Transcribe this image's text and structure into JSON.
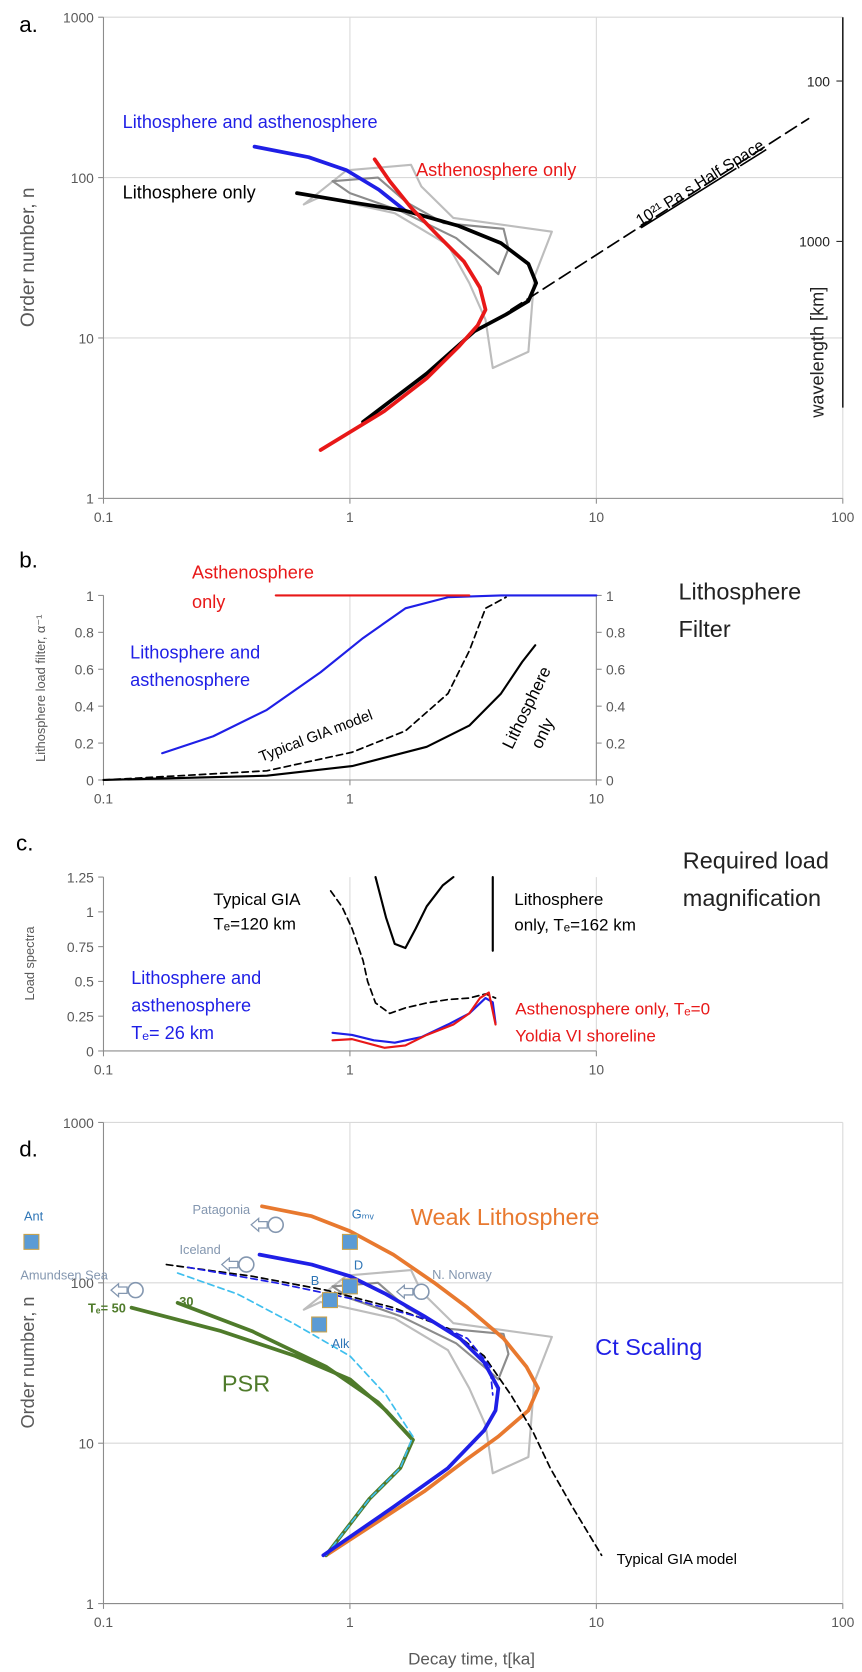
{
  "chart_data": [
    {
      "type": "line",
      "panel_label": "a.",
      "xscale": "log",
      "yscale": "log",
      "grid": "both",
      "xlim": [
        0.1,
        100
      ],
      "ylim": [
        1,
        1000
      ],
      "xticks": [
        0.1,
        1,
        10,
        100
      ],
      "yticks": [
        1,
        10,
        100,
        1000
      ],
      "ylabel": "Order number, n",
      "y2label": "wavelength [km]",
      "y2lim": [
        40000,
        40
      ],
      "y2ticks": [
        100,
        1000
      ],
      "series": [
        {
          "color": "#bdbdbd",
          "x": [
            0.65,
            0.97,
            1.77,
            1.95,
            2.63,
            6.6,
            5.6,
            5.3,
            3.8,
            3.55,
            3.05,
            2.5,
            1.52,
            0.76,
            0.65
          ],
          "values": [
            68,
            111,
            120,
            88,
            56,
            46,
            24,
            8.2,
            6.5,
            13,
            22,
            38,
            60,
            76,
            68
          ]
        },
        {
          "color": "#8c8c8c",
          "x": [
            0.85,
            1.3,
            1.7,
            2.4,
            4.2,
            4.4,
            4.0,
            3.5,
            2.7,
            1.6,
            1.0,
            0.85
          ],
          "values": [
            95,
            100,
            70,
            52,
            48,
            36,
            25,
            30,
            42,
            62,
            80,
            95
          ]
        },
        {
          "label": [
            "Lithosphere and asthenosphere"
          ],
          "color": "#1f1fe6",
          "x": [
            0.41,
            0.68,
            0.97,
            1.31,
            1.68
          ],
          "values": [
            156,
            134,
            111,
            84,
            62
          ]
        },
        {
          "label": [
            "Lithosphere only"
          ],
          "color": "#000000",
          "x": [
            0.61,
            1.02,
            1.68,
            2.76,
            4.1,
            5.3,
            5.7,
            5.3,
            4.3,
            3.2,
            2.05,
            1.13
          ],
          "values": [
            80,
            70,
            62,
            50,
            39,
            29,
            22,
            17,
            14,
            11,
            6,
            3
          ]
        },
        {
          "label": [
            "Asthenosphere only"
          ],
          "color": "#e81818",
          "x": [
            1.26,
            1.45,
            1.77,
            2.26,
            2.9,
            3.37,
            3.55,
            3.3,
            2.76,
            2.05,
            1.38,
            0.76
          ],
          "values": [
            130,
            95,
            65,
            44,
            30,
            20.6,
            15,
            12,
            8.8,
            5.6,
            3.5,
            2.0
          ]
        },
        {
          "label": [
            "10²¹ Pa s Half Space"
          ],
          "color": "#000000",
          "dash": true,
          "x": [
            4.5,
            72.6
          ],
          "values": [
            15,
            233
          ]
        }
      ]
    },
    {
      "type": "line",
      "panel_label": "b.",
      "xscale": "log",
      "yscale": "linear",
      "grid": "x",
      "xlim": [
        0.1,
        10
      ],
      "ylim": [
        0,
        1
      ],
      "xticks": [
        0.1,
        1,
        10
      ],
      "yticks": [
        0,
        0.2,
        0.4,
        0.6,
        0.8,
        1
      ],
      "y2lim": [
        0,
        1
      ],
      "y2ticks": [
        0,
        0.2,
        0.4,
        0.6,
        0.8,
        1
      ],
      "ylabel": "Lithosphere load filter, α⁻¹",
      "side_title": [
        "Lithosphere",
        "Filter"
      ],
      "series": [
        {
          "label": [
            "Typical GIA model"
          ],
          "color": "#000000",
          "dash": true,
          "x": [
            0.1,
            0.46,
            1.02,
            1.68,
            2.5,
            3.05,
            3.55,
            4.3
          ],
          "values": [
            0,
            0.05,
            0.15,
            0.266,
            0.468,
            0.7,
            0.93,
            0.99
          ]
        },
        {
          "label": [
            "Lithosphere",
            "only"
          ],
          "color": "#000000",
          "x": [
            0.1,
            0.46,
            1.02,
            2.05,
            3.05,
            4.1,
            5.0,
            5.65
          ],
          "values": [
            0,
            0.023,
            0.075,
            0.18,
            0.295,
            0.468,
            0.64,
            0.73
          ]
        },
        {
          "label": [
            "Lithosphere and",
            "asthenosphere"
          ],
          "color": "#1f1fe6",
          "x": [
            0.173,
            0.279,
            0.46,
            0.76,
            1.13,
            1.68,
            2.5,
            4.1,
            10
          ],
          "values": [
            0.145,
            0.237,
            0.38,
            0.584,
            0.769,
            0.93,
            0.99,
            1,
            1
          ]
        },
        {
          "label": [
            "Asthenosphere",
            "only"
          ],
          "color": "#e81818",
          "x": [
            0.5,
            3.05
          ],
          "values": [
            1,
            1
          ]
        }
      ]
    },
    {
      "type": "line",
      "panel_label": "c.",
      "xscale": "log",
      "yscale": "linear",
      "grid": "x",
      "xlim": [
        0.1,
        10
      ],
      "ylim": [
        0,
        1.25
      ],
      "xticks": [
        0.1,
        1,
        10
      ],
      "yticks": [
        0,
        0.25,
        0.5,
        0.75,
        1,
        1.25
      ],
      "ylabel": "Load spectra",
      "side_title": [
        "Required load",
        "magnification"
      ],
      "series": [
        {
          "label": [
            "Typical GIA",
            "Tₑ=120 km"
          ],
          "color": "#000000",
          "dash": true,
          "x": [
            0.836,
            0.93,
            1.02,
            1.13,
            1.18,
            1.27,
            1.45,
            1.68,
            2.05,
            2.5,
            3.05,
            3.55,
            3.9
          ],
          "values": [
            1.15,
            1.035,
            0.88,
            0.65,
            0.5,
            0.345,
            0.27,
            0.31,
            0.345,
            0.37,
            0.38,
            0.41,
            0.38
          ]
        },
        {
          "label": [
            "Lithosphere",
            "only, Tₑ=162 km"
          ],
          "color": "#000000",
          "x": [
            1.27,
            1.4,
            1.52,
            1.68,
            1.85,
            2.05,
            2.38,
            2.63,
            null,
            3.8,
            3.8
          ],
          "values": [
            1.25,
            0.96,
            0.77,
            0.74,
            0.88,
            1.04,
            1.19,
            1.25,
            null,
            1.25,
            0.72
          ]
        },
        {
          "label": [
            "Lithosphere and",
            "asthenosphere",
            "Tₑ= 26 km"
          ],
          "color": "#1f1fe6",
          "x": [
            0.85,
            1.02,
            1.25,
            1.52,
            1.95,
            2.5,
            3.05,
            3.55,
            3.8,
            3.9
          ],
          "values": [
            0.13,
            0.115,
            0.077,
            0.06,
            0.1,
            0.19,
            0.27,
            0.38,
            0.35,
            0.2
          ]
        },
        {
          "label": [
            "Asthenosphere only, Tₑ=0",
            "Yoldia VI shoreline"
          ],
          "color": "#e81818",
          "x": [
            0.85,
            1.02,
            1.38,
            1.68,
            2.05,
            2.63,
            3.05,
            3.37,
            3.66,
            3.9
          ],
          "values": [
            0.077,
            0.085,
            0.023,
            0.04,
            0.115,
            0.19,
            0.27,
            0.38,
            0.42,
            0.19
          ]
        }
      ]
    },
    {
      "type": "line",
      "panel_label": "d.",
      "xscale": "log",
      "yscale": "log",
      "grid": "both",
      "xlim": [
        0.1,
        100
      ],
      "ylim": [
        1,
        1000
      ],
      "xticks": [
        0.1,
        1,
        10,
        100
      ],
      "yticks": [
        1,
        10,
        100,
        1000
      ],
      "xlabel": "Decay time, t[ka]",
      "ylabel": "Order number, n",
      "annotations": [
        "PSR"
      ],
      "series": [
        {
          "color": "#bdbdbd",
          "x": [
            0.65,
            0.97,
            1.77,
            1.95,
            2.63,
            6.6,
            5.6,
            5.3,
            3.8,
            3.55,
            3.05,
            2.5,
            1.52,
            0.76,
            0.65
          ],
          "values": [
            68,
            111,
            120,
            88,
            56,
            46,
            24,
            8.2,
            6.5,
            13,
            22,
            38,
            60,
            76,
            68
          ]
        },
        {
          "color": "#8c8c8c",
          "x": [
            0.85,
            1.3,
            1.7,
            2.4,
            4.2,
            4.4,
            4.0,
            3.5,
            2.7,
            1.6,
            1.0,
            0.85
          ],
          "values": [
            95,
            100,
            70,
            52,
            48,
            36,
            25,
            30,
            42,
            62,
            80,
            95
          ]
        },
        {
          "label": [
            "Weak Lithosphere"
          ],
          "color": "#e8792f",
          "x": [
            0.44,
            0.7,
            1,
            1.5,
            2.2,
            3,
            4.2,
            5.2,
            5.8,
            5.3,
            4,
            3,
            2,
            1.2,
            0.8
          ],
          "values": [
            300,
            260,
            210,
            150,
            100,
            70,
            45,
            30,
            22,
            16,
            11,
            8,
            5,
            3,
            2
          ]
        },
        {
          "label": [
            "Tₑ= 50"
          ],
          "color": "#4f7b2b",
          "x": [
            0.13,
            0.3,
            0.6,
            1,
            1.4,
            1.8,
            1.6,
            1.2,
            0.8
          ],
          "values": [
            70,
            50,
            35,
            25,
            16,
            10.5,
            7,
            4.5,
            2
          ]
        },
        {
          "label": [
            "30"
          ],
          "color": "#4f7b2b",
          "x": [
            0.2,
            0.4,
            0.8,
            1.3,
            1.8
          ],
          "values": [
            75,
            50,
            30,
            18,
            10.5
          ]
        },
        {
          "color": "#3fbfee",
          "dash": true,
          "x": [
            0.2,
            0.35,
            0.6,
            1,
            1.4,
            1.8,
            1.6,
            1.2,
            0.8
          ],
          "values": [
            115,
            85,
            55,
            35,
            20,
            11,
            7,
            4.5,
            2
          ]
        },
        {
          "label": [
            "Typical GIA model"
          ],
          "color": "#000000",
          "dash": true,
          "x": [
            0.18,
            0.4,
            0.8,
            1.5,
            2.5,
            3.5,
            4.5,
            5.5,
            6.5,
            8,
            10.5
          ],
          "values": [
            130,
            110,
            90,
            70,
            52,
            35,
            20,
            12,
            7,
            4,
            2
          ]
        },
        {
          "color": "#1f1fe6",
          "dash": true,
          "x": [
            0.22,
            0.5,
            1,
            2,
            3,
            3.7,
            3.8
          ],
          "values": [
            125,
            100,
            80,
            60,
            45,
            30,
            20
          ]
        },
        {
          "label": [
            "Ct Scaling"
          ],
          "color": "#1f1fe6",
          "x": [
            0.43,
            0.7,
            1,
            1.4,
            2,
            2.8,
            3.5,
            4,
            3.9,
            3.5,
            2.5,
            1.5,
            0.78
          ],
          "values": [
            150,
            130,
            110,
            85,
            62,
            45,
            32,
            22,
            16,
            12,
            7,
            4,
            2
          ]
        }
      ],
      "points": [
        {
          "label": "Ant",
          "shape": "square",
          "x": 0.051,
          "y": 180
        },
        {
          "label": "Patagonia",
          "shape": "circle-arrow",
          "x": 0.5,
          "y": 230
        },
        {
          "label": "Gₘᵥ",
          "shape": "square",
          "x": 1,
          "y": 180
        },
        {
          "label": "Amundsen Sea",
          "shape": "circle-arrow",
          "x": 0.135,
          "y": 90
        },
        {
          "label": "Iceland",
          "shape": "circle-arrow",
          "x": 0.38,
          "y": 130
        },
        {
          "label": "D",
          "shape": "square",
          "x": 1,
          "y": 95
        },
        {
          "label": "B",
          "shape": "square",
          "x": 0.83,
          "y": 78
        },
        {
          "label": "N. Norway",
          "shape": "circle-arrow",
          "x": 1.95,
          "y": 88
        },
        {
          "label": "Alk",
          "shape": "square",
          "x": 0.75,
          "y": 55
        }
      ]
    }
  ]
}
